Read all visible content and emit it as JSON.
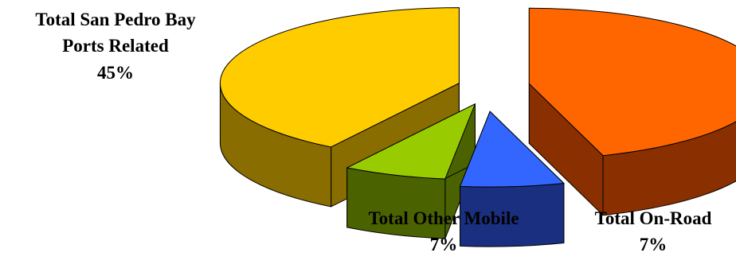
{
  "chart_data": {
    "type": "pie",
    "style": "3d-exploded",
    "slices": [
      {
        "name_lines": [
          "Total San Pedro Bay",
          "Ports Related"
        ],
        "percent_label": "45%",
        "value": 45,
        "color": "#ff6600",
        "side_color": "#8a3000"
      },
      {
        "name_lines": [
          "Total Other Mobile"
        ],
        "percent_label": "7%",
        "value": 7,
        "color": "#3366ff",
        "side_color": "#1a2f80"
      },
      {
        "name_lines": [
          "Total On-Road"
        ],
        "percent_label": "7%",
        "value": 7,
        "color": "#99cc00",
        "side_color": "#4a6300"
      },
      {
        "name_lines": [
          ""
        ],
        "percent_label": "",
        "value": 41,
        "color": "#ffcc00",
        "side_color": "#8a6d00"
      }
    ]
  }
}
